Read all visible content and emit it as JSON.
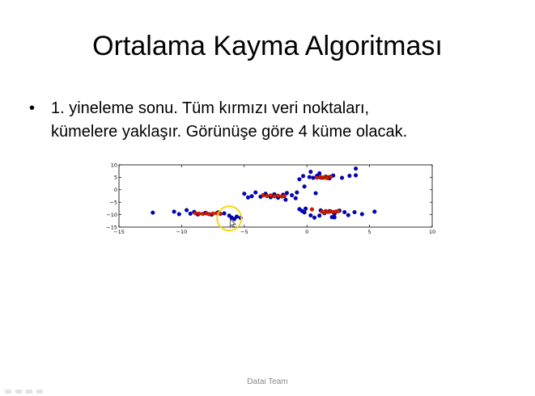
{
  "slide": {
    "title": "Ortalama Kayma Algoritması",
    "bullet_symbol": "•",
    "bullet_line1": "1. yineleme sonu. Tüm kırmızı veri noktaları,",
    "bullet_line2": "kümelere yaklaşır. Görünüşe göre 4 küme olacak.",
    "footer": "Datai Team"
  },
  "chart_data": {
    "type": "scatter",
    "title": "",
    "xlabel": "",
    "ylabel": "",
    "xlim": [
      -15,
      10
    ],
    "ylim": [
      -15,
      10
    ],
    "x_ticks": [
      -15,
      -10,
      -5,
      0,
      5,
      10
    ],
    "y_ticks": [
      10,
      5,
      0,
      -5,
      -10,
      -15
    ],
    "highlight_circle": {
      "x": -6.2,
      "y": -11.5,
      "color": "#f5d400"
    },
    "series": [
      {
        "color": "#0000cc",
        "points": [
          [
            -12.3,
            -9.2
          ],
          [
            -10.6,
            -8.8
          ],
          [
            -10.2,
            -9.8
          ],
          [
            -9.6,
            -8.2
          ],
          [
            -9.3,
            -9.6
          ],
          [
            -9.0,
            -8.9
          ],
          [
            -8.7,
            -9.9
          ],
          [
            -8.1,
            -9.3
          ],
          [
            -7.6,
            -10.0
          ],
          [
            -7.1,
            -9.1
          ],
          [
            -6.6,
            -9.5
          ],
          [
            -6.2,
            -10.4
          ],
          [
            -6.0,
            -11.2
          ],
          [
            -5.8,
            -11.8
          ],
          [
            -5.6,
            -10.8
          ],
          [
            -5.3,
            -11.3
          ],
          [
            -5.0,
            -1.6
          ],
          [
            -4.4,
            -2.6
          ],
          [
            -4.1,
            -1.1
          ],
          [
            -3.7,
            -2.8
          ],
          [
            -3.3,
            -1.6
          ],
          [
            -2.9,
            -3.0
          ],
          [
            -2.6,
            -1.8
          ],
          [
            -2.3,
            -3.2
          ],
          [
            -1.9,
            -2.0
          ],
          [
            -1.6,
            -1.3
          ],
          [
            -1.2,
            -2.2
          ],
          [
            -0.9,
            -3.4
          ],
          [
            -1.7,
            -4.0
          ],
          [
            -4.7,
            -3.1
          ],
          [
            -0.6,
            4.2
          ],
          [
            -0.3,
            5.5
          ],
          [
            0.2,
            5.1
          ],
          [
            0.5,
            4.8
          ],
          [
            0.8,
            5.6
          ],
          [
            1.1,
            4.9
          ],
          [
            1.5,
            5.3
          ],
          [
            1.8,
            4.6
          ],
          [
            2.1,
            5.7
          ],
          [
            0.3,
            7.2
          ],
          [
            1.0,
            6.6
          ],
          [
            2.8,
            4.8
          ],
          [
            3.4,
            5.6
          ],
          [
            3.9,
            5.8
          ],
          [
            3.9,
            8.5
          ],
          [
            -0.2,
            1.3
          ],
          [
            -0.8,
            -1.1
          ],
          [
            0.7,
            -1.4
          ],
          [
            -0.6,
            -7.8
          ],
          [
            -0.2,
            -9.1
          ],
          [
            0.3,
            -10.3
          ],
          [
            0.6,
            -11.2
          ],
          [
            1.1,
            -8.3
          ],
          [
            1.4,
            -9.4
          ],
          [
            1.8,
            -8.6
          ],
          [
            2.2,
            -9.7
          ],
          [
            2.6,
            -8.4
          ],
          [
            2.2,
            -11.1
          ],
          [
            3.0,
            -9.0
          ],
          [
            3.3,
            -10.2
          ],
          [
            3.8,
            -9.0
          ],
          [
            4.4,
            -9.8
          ],
          [
            5.4,
            -8.8
          ],
          [
            -0.1,
            -7.6
          ],
          [
            1.0,
            -10.4
          ],
          [
            2.0,
            -11.0
          ],
          [
            -0.4,
            -8.5
          ]
        ]
      },
      {
        "color": "#dd1a00",
        "points": [
          [
            -8.9,
            -9.4
          ],
          [
            -8.6,
            -9.6
          ],
          [
            -8.3,
            -9.7
          ],
          [
            -8.0,
            -9.5
          ],
          [
            -7.8,
            -9.8
          ],
          [
            -7.5,
            -9.6
          ],
          [
            -7.2,
            -9.4
          ],
          [
            -6.9,
            -9.7
          ],
          [
            -3.5,
            -2.2
          ],
          [
            -3.2,
            -2.5
          ],
          [
            -2.9,
            -2.3
          ],
          [
            -2.6,
            -2.6
          ],
          [
            -2.3,
            -2.4
          ],
          [
            -2.0,
            -2.7
          ],
          [
            -1.8,
            -2.5
          ],
          [
            0.8,
            4.9
          ],
          [
            1.1,
            5.1
          ],
          [
            1.3,
            4.8
          ],
          [
            1.5,
            5.2
          ],
          [
            1.7,
            5.0
          ],
          [
            1.9,
            5.3
          ],
          [
            1.6,
            4.7
          ],
          [
            0.4,
            -7.9
          ],
          [
            1.2,
            -8.8
          ],
          [
            1.5,
            -8.6
          ],
          [
            1.7,
            -8.9
          ],
          [
            1.9,
            -8.7
          ],
          [
            2.1,
            -9.0
          ],
          [
            2.3,
            -8.8
          ],
          [
            1.4,
            -9.1
          ],
          [
            2.5,
            -8.6
          ]
        ]
      }
    ]
  }
}
